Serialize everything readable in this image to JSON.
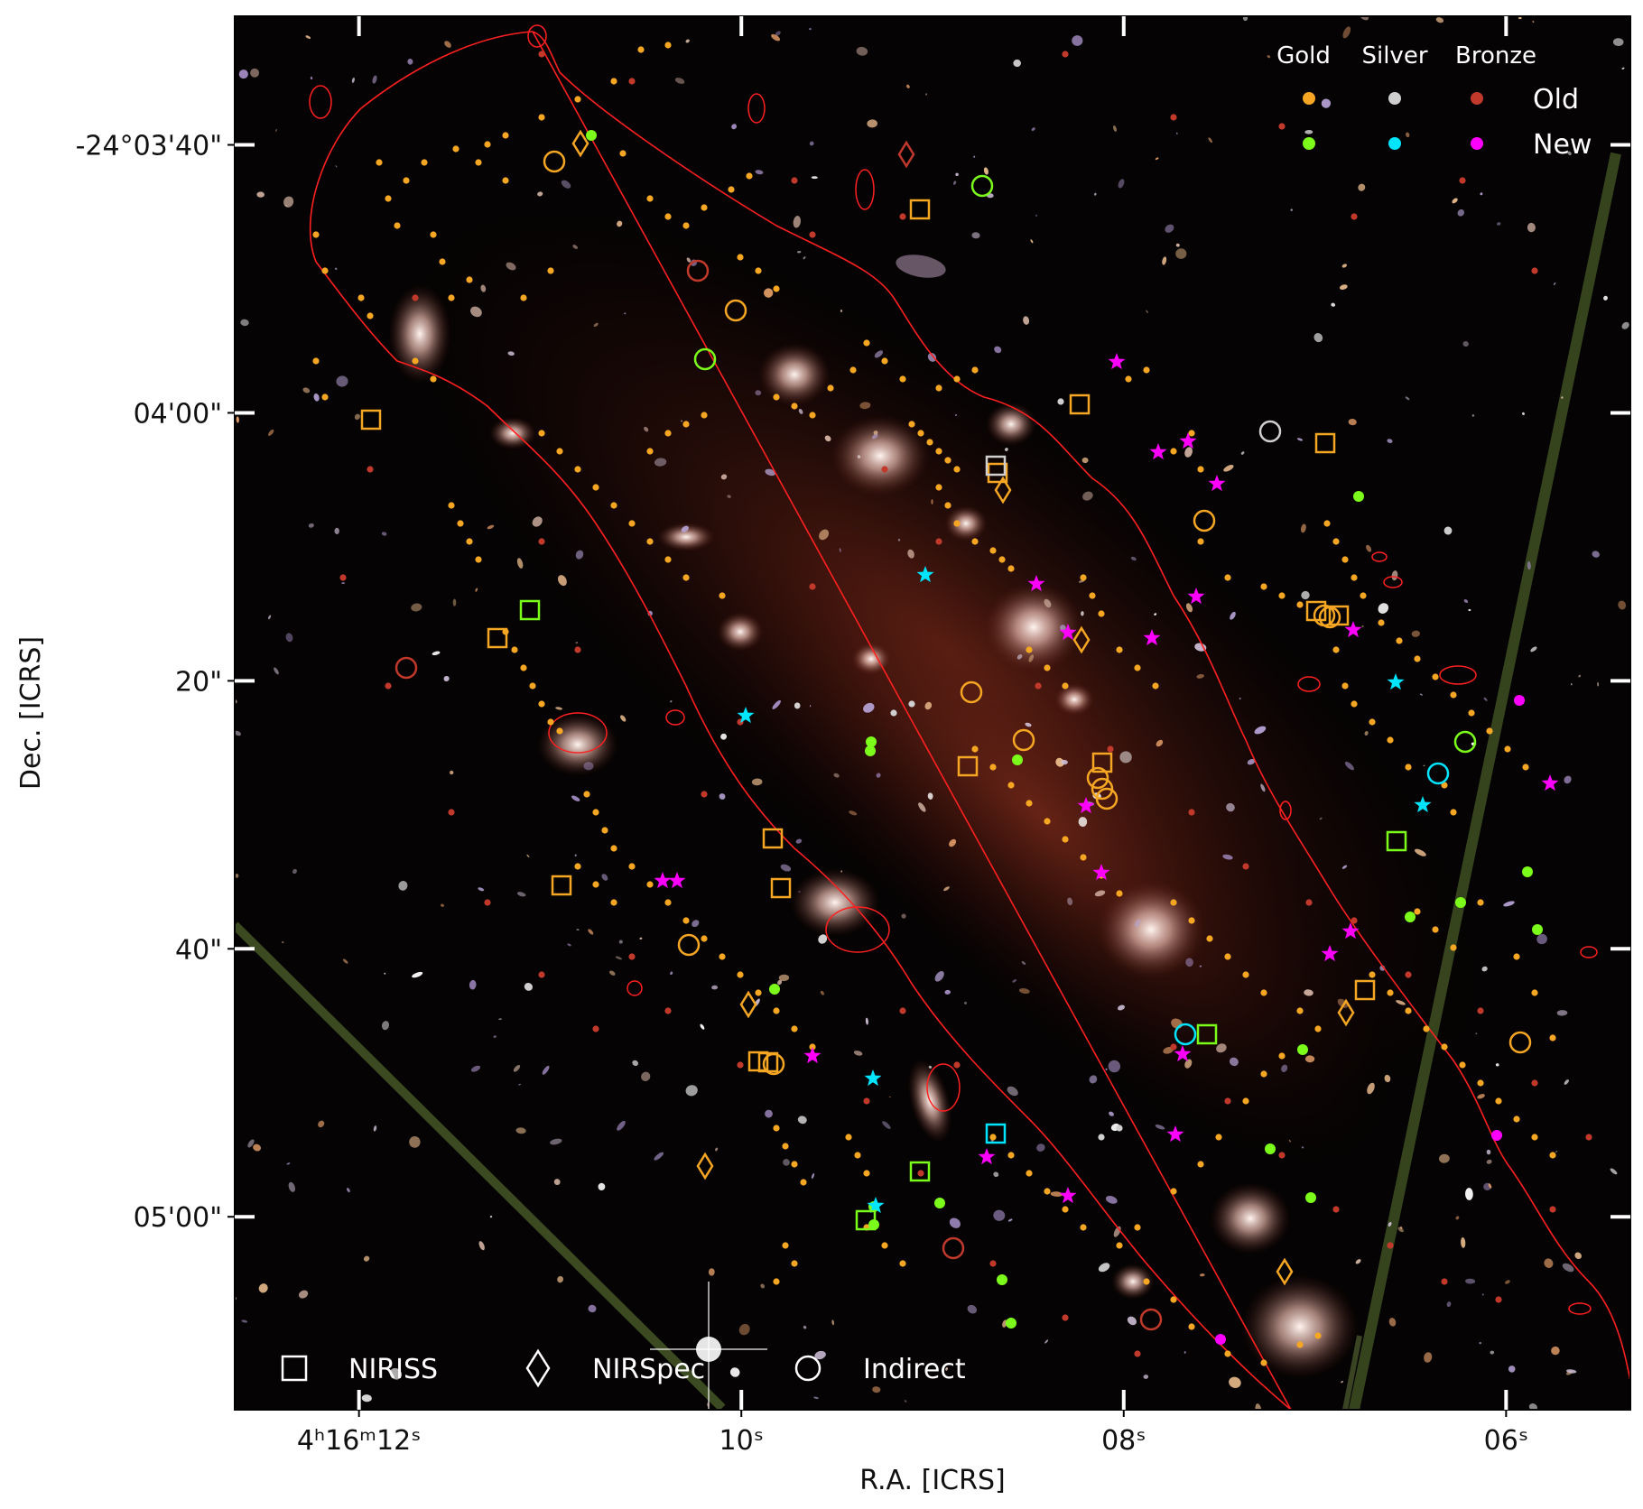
{
  "figure": {
    "ylabel": "Dec. [ICRS]",
    "xlabel": "R.A. [ICRS]",
    "y_ticks": [
      {
        "value_arcsec": 40,
        "label": "-24°03'40\""
      },
      {
        "value_arcsec": 60,
        "label": "04'00\""
      },
      {
        "value_arcsec": 80,
        "label": "20\""
      },
      {
        "value_arcsec": 100,
        "label": "40\""
      },
      {
        "value_arcsec": 120,
        "label": "05'00\""
      }
    ],
    "x_ticks": [
      {
        "value_s": 12,
        "label_main": "4ʰ16ᵐ12ˢ"
      },
      {
        "value_s": 10,
        "label_main": "10ˢ"
      },
      {
        "value_s": 8,
        "label_main": "08ˢ"
      },
      {
        "value_s": 6,
        "label_main": "06ˢ"
      }
    ],
    "ra_range_s": [
      12.65,
      5.35
    ],
    "dec_range_arcsec": [
      30.4,
      134.4
    ]
  },
  "legend": {
    "quality_headers": [
      "Gold",
      "Silver",
      "Bronze"
    ],
    "epoch_labels": [
      "Old",
      "New"
    ],
    "colors": {
      "gold_old": "#f5a623",
      "silver_old": "#cfcfcf",
      "bronze_old": "#c0392b",
      "gold_new": "#7cfc1a",
      "silver_new": "#00e5ff",
      "bronze_new": "#ff00ff"
    },
    "markers": [
      {
        "shape": "square",
        "label": "NIRISS"
      },
      {
        "shape": "diamond",
        "label": "NIRSpec"
      },
      {
        "shape": "circle",
        "label": "Indirect"
      }
    ]
  }
}
